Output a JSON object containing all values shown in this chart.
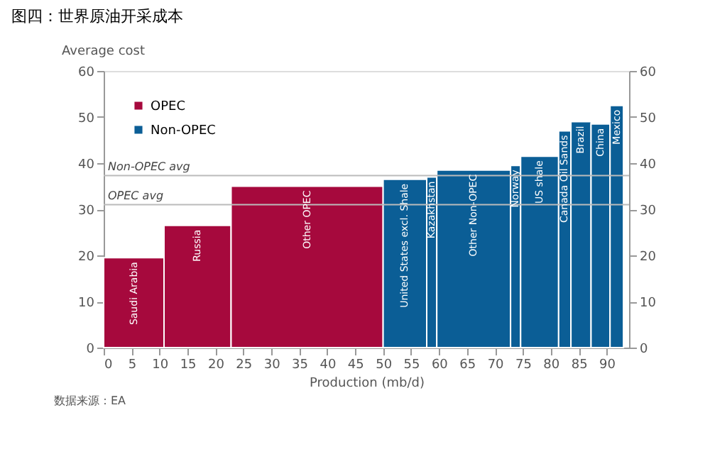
{
  "chart_data": {
    "type": "histogram",
    "title": "图四：世界原油开采成本",
    "ylabel": "Average cost",
    "xlabel": "Production (mb/d)",
    "bins": [
      0,
      10.8,
      22.8,
      50,
      57.8,
      59.6,
      72.8,
      74.6,
      81.4,
      83.6,
      87.2,
      90.6,
      93
    ],
    "series": [
      {
        "name": "OPEC",
        "color": "#a6093d",
        "values": [
          19.5,
          26.5,
          35,
          null,
          null,
          null,
          null,
          null,
          null,
          null,
          null,
          null
        ]
      },
      {
        "name": "Non-OPEC",
        "color": "#0b5e96",
        "values": [
          null,
          null,
          null,
          36.5,
          37,
          38.5,
          39.5,
          41.5,
          47,
          49,
          48.5,
          52.5
        ]
      }
    ],
    "xlim": [
      0,
      94
    ],
    "xticks": [
      0,
      5,
      10,
      15,
      20,
      25,
      30,
      35,
      40,
      45,
      50,
      55,
      60,
      65,
      70,
      75,
      80,
      85,
      90
    ],
    "ylim": [
      0,
      60
    ],
    "yticks": [
      0,
      10,
      20,
      30,
      40,
      50,
      60
    ],
    "y2lim": [
      0,
      60
    ],
    "y2ticks": [
      0,
      10,
      20,
      30,
      40,
      50,
      60
    ],
    "ref_lines": [
      {
        "axis": "y",
        "value": 37.3,
        "label": "Non-OPEC avg",
        "color": "#bbbbbb"
      },
      {
        "axis": "y",
        "value": 31,
        "label": "OPEC avg",
        "color": "#bbbbbb"
      }
    ],
    "annotations": [
      {
        "text": "Saudi Arabia",
        "x": 5.4,
        "y": 19.5
      },
      {
        "text": "Russia",
        "x": 16.8,
        "y": 26.5
      },
      {
        "text": "Other OPEC",
        "x": 36.4,
        "y": 35
      },
      {
        "text": "United States excl. Shale",
        "x": 53.9,
        "y": 36.5
      },
      {
        "text": "Kazakhstan",
        "x": 58.7,
        "y": 37
      },
      {
        "text": "Other Non-OPEC",
        "x": 66.2,
        "y": 38.5
      },
      {
        "text": "Norway",
        "x": 73.7,
        "y": 39.5
      },
      {
        "text": "US shale",
        "x": 78,
        "y": 41.5
      },
      {
        "text": "Canada Oil Sands",
        "x": 82.5,
        "y": 47
      },
      {
        "text": "Brazil",
        "x": 85.4,
        "y": 49
      },
      {
        "text": "China",
        "x": 88.9,
        "y": 48.5
      },
      {
        "text": "Mexico",
        "x": 91.8,
        "y": 52.5
      },
      "数据来源：EA"
    ],
    "legend": "top left",
    "grid": false
  }
}
